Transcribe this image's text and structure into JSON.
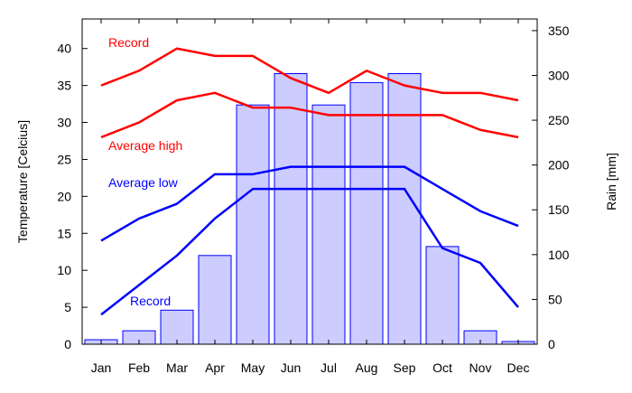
{
  "chart_data": {
    "type": "line+bar",
    "categories": [
      "Jan",
      "Feb",
      "Mar",
      "Apr",
      "May",
      "Jun",
      "Jul",
      "Aug",
      "Sep",
      "Oct",
      "Nov",
      "Dec"
    ],
    "ylabel": "Temperature [Celcius]",
    "y2label": "Rain [mm]",
    "ylim": [
      0,
      44
    ],
    "y2lim": [
      0,
      363
    ],
    "yticks": [
      0,
      5,
      10,
      15,
      20,
      25,
      30,
      35,
      40
    ],
    "y2ticks": [
      0,
      50,
      100,
      150,
      200,
      250,
      300,
      350
    ],
    "grid": false,
    "bars": {
      "axis": "right",
      "color": "#0000ff",
      "fill": "#ccccff",
      "values": [
        5,
        15,
        38,
        99,
        267,
        302,
        267,
        292,
        302,
        109,
        15,
        3
      ]
    },
    "series": [
      {
        "name": "Record",
        "color": "#ff0000",
        "values": [
          35,
          37,
          40,
          39,
          39,
          36,
          34,
          37,
          35,
          34,
          34,
          33
        ]
      },
      {
        "name": "Average high",
        "color": "#ff0000",
        "values": [
          28,
          30,
          33,
          34,
          32,
          32,
          31,
          31,
          31,
          31,
          29,
          28
        ]
      },
      {
        "name": "Average low",
        "color": "#0000ff",
        "values": [
          14,
          17,
          19,
          23,
          23,
          24,
          24,
          24,
          24,
          21,
          18,
          16
        ]
      },
      {
        "name": "Record",
        "color": "#0000ff",
        "values": [
          4,
          8,
          12,
          17,
          21,
          21,
          21,
          21,
          21,
          13,
          11,
          5
        ]
      }
    ]
  }
}
